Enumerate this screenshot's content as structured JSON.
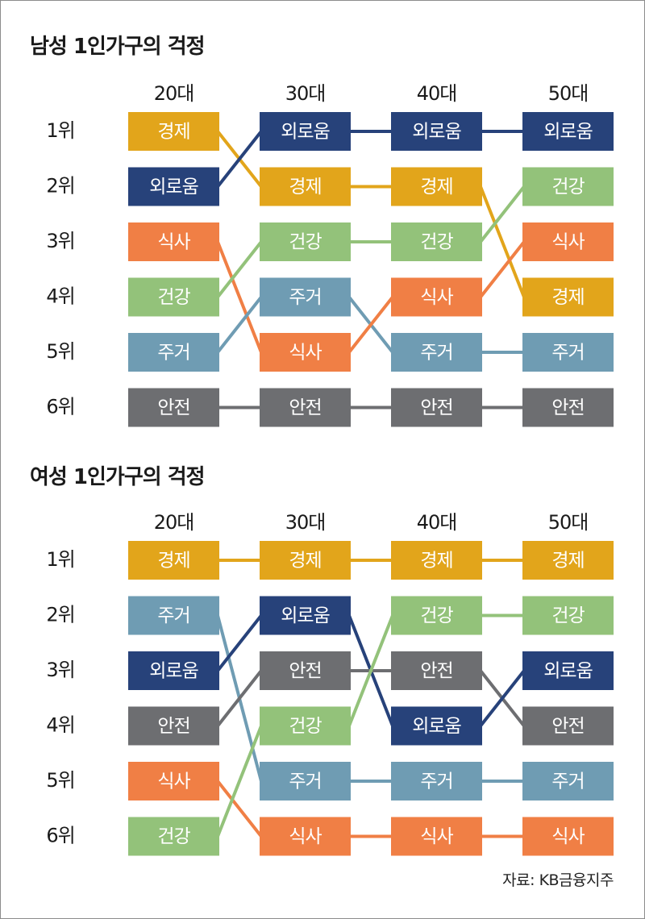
{
  "source": "자료: KB금융지주",
  "colors": {
    "경제": "#e2a51b",
    "외로움": "#27427a",
    "식사": "#f07f45",
    "건강": "#93c27a",
    "주거": "#6f9cb3",
    "안전": "#6d6e71"
  },
  "chart_data": [
    {
      "type": "table",
      "title": "남성 1인가구의 걱정",
      "columns": [
        "20대",
        "30대",
        "40대",
        "50대"
      ],
      "rows": [
        "1위",
        "2위",
        "3위",
        "4위",
        "5위",
        "6위"
      ],
      "ranks": [
        [
          "경제",
          "외로움",
          "식사",
          "건강",
          "주거",
          "안전"
        ],
        [
          "외로움",
          "경제",
          "건강",
          "주거",
          "식사",
          "안전"
        ],
        [
          "외로움",
          "경제",
          "건강",
          "식사",
          "주거",
          "안전"
        ],
        [
          "외로움",
          "건강",
          "식사",
          "경제",
          "주거",
          "안전"
        ]
      ]
    },
    {
      "type": "table",
      "title": "여성 1인가구의 걱정",
      "columns": [
        "20대",
        "30대",
        "40대",
        "50대"
      ],
      "rows": [
        "1위",
        "2위",
        "3위",
        "4위",
        "5위",
        "6위"
      ],
      "ranks": [
        [
          "경제",
          "주거",
          "외로움",
          "안전",
          "식사",
          "건강"
        ],
        [
          "경제",
          "외로움",
          "안전",
          "건강",
          "주거",
          "식사"
        ],
        [
          "경제",
          "건강",
          "안전",
          "외로움",
          "주거",
          "식사"
        ],
        [
          "경제",
          "건강",
          "외로움",
          "안전",
          "주거",
          "식사"
        ]
      ]
    }
  ]
}
